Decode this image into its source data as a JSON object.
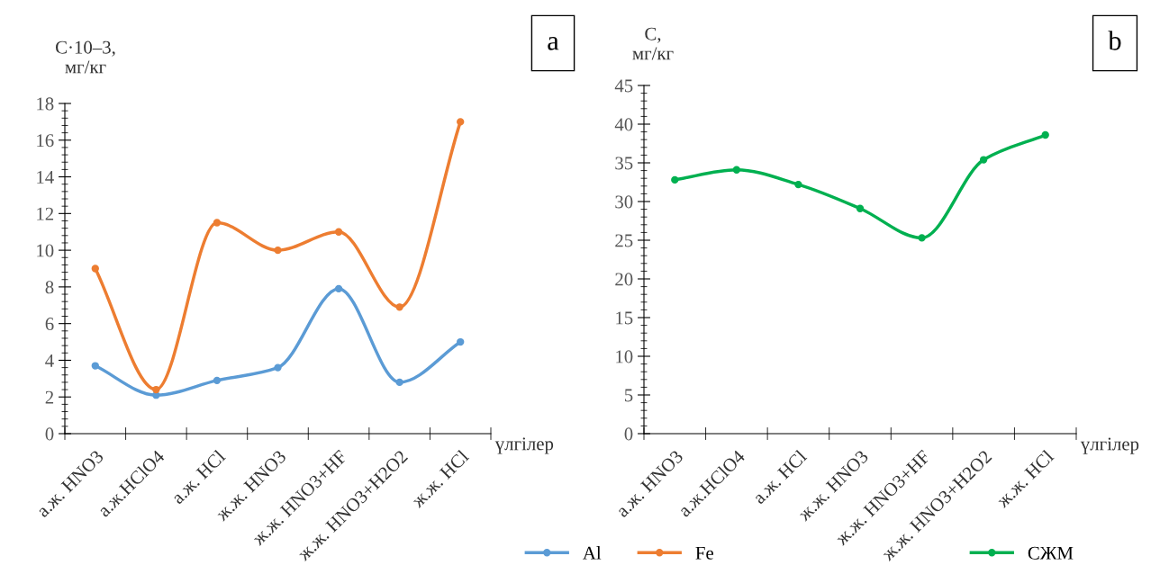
{
  "chart_data": [
    {
      "type": "line",
      "ylabel": "С·10–3,\nмг/кг",
      "xlabel": "үлгілер",
      "annotations": [
        "a"
      ],
      "categories": [
        "а.ж. HNO3",
        "а.ж.HClO4",
        "а.ж. HCl",
        "ж.ж. HNO3",
        "ж.ж. HNO3+HF",
        "ж.ж. HNO3+H2O2",
        "ж.ж. HCl"
      ],
      "series": [
        {
          "name": "Al",
          "color": "#5b9bd5",
          "values": [
            3.7,
            2.1,
            2.9,
            3.6,
            7.9,
            2.8,
            5.0
          ]
        },
        {
          "name": "Fe",
          "color": "#ed7d31",
          "values": [
            9.0,
            2.4,
            11.5,
            10.0,
            11.0,
            6.9,
            17.0
          ]
        }
      ],
      "ylim": [
        0,
        18
      ],
      "yticks": [
        0,
        2,
        4,
        6,
        8,
        10,
        12,
        14,
        16,
        18
      ],
      "grid": false,
      "legend": "bottom right",
      "marker": "circle",
      "line_style": "solid"
    },
    {
      "type": "line",
      "ylabel": "С,\nмг/кг",
      "xlabel": "үлгілер",
      "annotations": [
        "b"
      ],
      "categories": [
        "а.ж. HNO3",
        "а.ж.HClO4",
        "а.ж. HCl",
        "ж.ж. HNO3",
        "ж.ж. HNO3+HF",
        "ж.ж. HNO3+H2O2",
        "ж.ж. HCl"
      ],
      "series": [
        {
          "name": "СЖМ",
          "color": "#00b050",
          "values": [
            32.8,
            34.1,
            32.2,
            29.1,
            25.3,
            35.4,
            38.6
          ]
        }
      ],
      "ylim": [
        0,
        45
      ],
      "yticks": [
        0,
        5,
        10,
        15,
        20,
        25,
        30,
        35,
        40,
        45
      ],
      "grid": false,
      "legend": "bottom right",
      "marker": "circle",
      "line_style": "solid"
    }
  ]
}
